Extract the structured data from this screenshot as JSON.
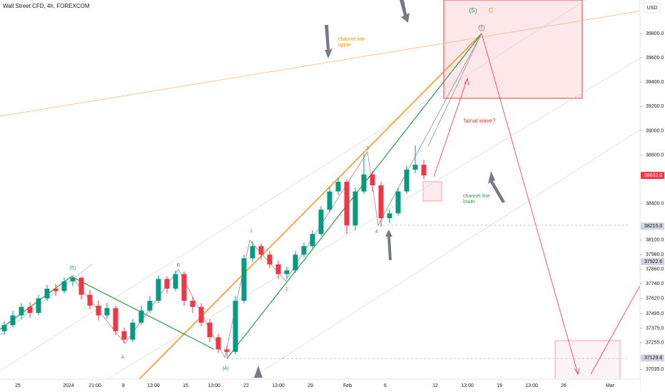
{
  "chart_data": {
    "type": "candlestick",
    "title": "Wall Street CFD, 4h, FOREXCOM",
    "currency": "USD",
    "up_color": "#089981",
    "down_color": "#f23645",
    "open": [
      37350,
      37400,
      37480,
      37550,
      37500,
      37620,
      37700,
      37680,
      37760,
      37790,
      37650,
      37560,
      37480,
      37540,
      37350,
      37280,
      37420,
      37520,
      37600,
      37780,
      37700,
      37820,
      37600,
      37550,
      37420,
      37300,
      37200,
      37180,
      37600,
      37950,
      38050,
      37980,
      37900,
      37820,
      37850,
      37980,
      38050,
      38150,
      38350,
      38500,
      38580,
      38220,
      38500,
      38640,
      38550,
      38280,
      38320,
      38500,
      38680,
      38720
    ],
    "high": [
      37430,
      37520,
      37580,
      37590,
      37650,
      37730,
      37740,
      37790,
      37810,
      37800,
      37690,
      37600,
      37580,
      37560,
      37380,
      37450,
      37560,
      37640,
      37810,
      37800,
      37850,
      37840,
      37630,
      37580,
      37450,
      37330,
      37230,
      37640,
      37980,
      38090,
      38070,
      38010,
      37930,
      37880,
      38010,
      38080,
      38180,
      38380,
      38540,
      38610,
      38600,
      38530,
      38810,
      38670,
      38580,
      38350,
      38530,
      38710,
      38880,
      38760
    ],
    "low": [
      37320,
      37380,
      37450,
      37460,
      37480,
      37600,
      37640,
      37660,
      37720,
      37610,
      37530,
      37440,
      37450,
      37320,
      37250,
      37260,
      37400,
      37500,
      37580,
      37660,
      37680,
      37560,
      37500,
      37390,
      37260,
      37170,
      37140,
      37160,
      37580,
      37920,
      37940,
      37870,
      37780,
      37790,
      37830,
      37960,
      38030,
      38130,
      38330,
      38470,
      38150,
      38180,
      38480,
      38500,
      38210,
      38240,
      38300,
      38480,
      38650,
      38600
    ],
    "close": [
      37400,
      37480,
      37550,
      37500,
      37620,
      37700,
      37680,
      37760,
      37790,
      37650,
      37560,
      37480,
      37540,
      37350,
      37280,
      37420,
      37520,
      37600,
      37780,
      37700,
      37820,
      37600,
      37550,
      37420,
      37300,
      37200,
      37180,
      37600,
      37950,
      38050,
      37980,
      37900,
      37820,
      37850,
      37980,
      38050,
      38150,
      38350,
      38500,
      38580,
      38220,
      38500,
      38640,
      38550,
      38280,
      38320,
      38500,
      38680,
      38720,
      38632
    ],
    "ylim": [
      36955,
      40076
    ],
    "yticks": [
      {
        "value": 39800,
        "label": "39800.0"
      },
      {
        "value": 39600,
        "label": "39600.0"
      },
      {
        "value": 39400,
        "label": "39400.0"
      },
      {
        "value": 39200,
        "label": "39200.0"
      },
      {
        "value": 39000,
        "label": "39000.0"
      },
      {
        "value": 38800,
        "label": "38800.0"
      },
      {
        "value": 38400,
        "label": "38400.0"
      },
      {
        "value": 38100,
        "label": "38100.0"
      },
      {
        "value": 37980,
        "label": "37980.0"
      },
      {
        "value": 37860,
        "label": "37860.0"
      },
      {
        "value": 37740,
        "label": "37740.0"
      },
      {
        "value": 37620,
        "label": "37620.0"
      },
      {
        "value": 37495,
        "label": "37495.0"
      },
      {
        "value": 37375,
        "label": "37375.0"
      },
      {
        "value": 37255,
        "label": "37255.0"
      },
      {
        "value": 37035,
        "label": "37035.0"
      }
    ],
    "price_labels": [
      {
        "value": 38632,
        "label": "38632.0",
        "color": "#f23645"
      },
      {
        "value": 38215,
        "label": "38215.0",
        "color": "#d1d4dc"
      },
      {
        "value": 37922.6,
        "label": "37922.6",
        "color": "#d1d4dc"
      },
      {
        "value": 37129.8,
        "label": "37129.8",
        "color": "#d1d4dc"
      }
    ],
    "xticks": [
      "25",
      "2024",
      "21:00",
      "8",
      "13:00",
      "15",
      "13:00",
      "22",
      "13:00",
      "29",
      "Feb",
      "6",
      "12",
      "13:00",
      "19",
      "13:00",
      "26",
      "Mar"
    ],
    "annotations": {
      "wave_5_major": "(5)",
      "wave_c": "C",
      "channel_upper": [
        "channel line",
        "upper"
      ],
      "channel_lower": [
        "channel line",
        "lower"
      ],
      "final_wave": "fainal wave?",
      "waves": [
        "(5)",
        "A",
        "B",
        "(4)",
        "1",
        "2",
        "3",
        "4",
        "5"
      ]
    }
  }
}
